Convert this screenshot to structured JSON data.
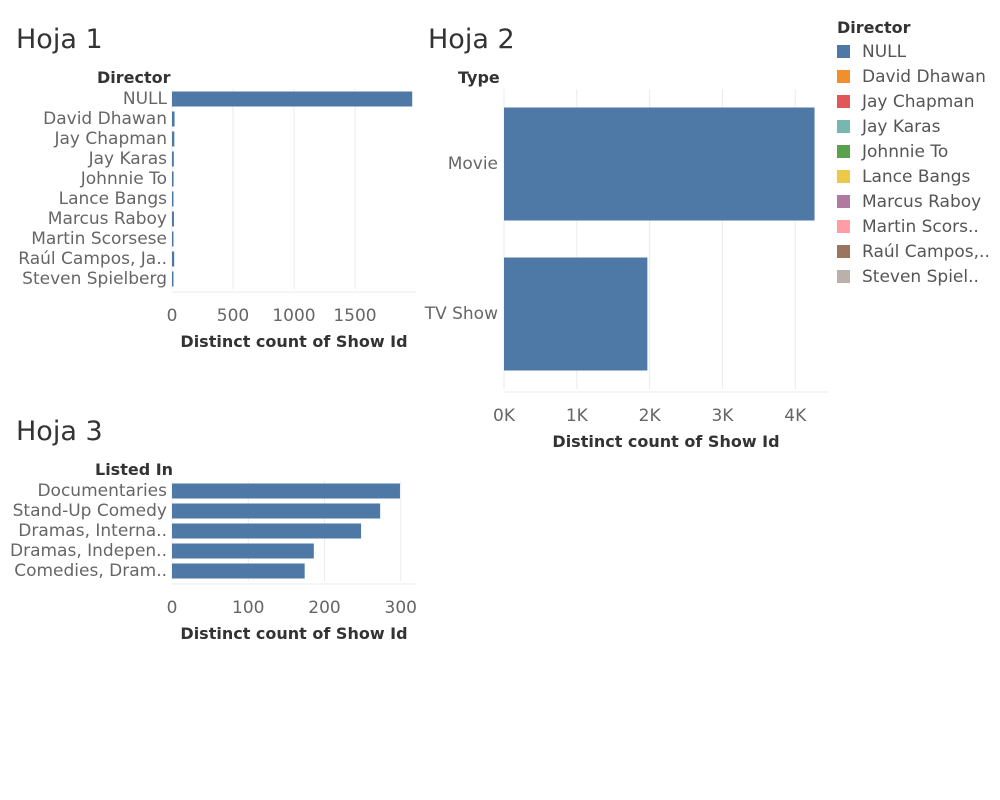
{
  "sheets": {
    "hoja1": {
      "title": "Hoja 1",
      "row_header": "Director",
      "x_title": "Distinct count of Show Id"
    },
    "hoja2": {
      "title": "Hoja 2",
      "row_header": "Type",
      "x_title": "Distinct count of Show Id"
    },
    "hoja3": {
      "title": "Hoja 3",
      "row_header": "Listed In",
      "x_title": "Distinct count of Show Id"
    }
  },
  "legend": {
    "title": "Director",
    "items": [
      {
        "label": "NULL",
        "color": "#4e79a7"
      },
      {
        "label": "David Dhawan",
        "color": "#f28e2b"
      },
      {
        "label": "Jay Chapman",
        "color": "#e15759"
      },
      {
        "label": "Jay Karas",
        "color": "#76b7b2"
      },
      {
        "label": "Johnnie To",
        "color": "#59a14f"
      },
      {
        "label": "Lance Bangs",
        "color": "#edc948"
      },
      {
        "label": "Marcus Raboy",
        "color": "#b07aa1"
      },
      {
        "label": "Martin Scors..",
        "color": "#ff9da7"
      },
      {
        "label": "Raúl Campos,..",
        "color": "#9c755f"
      },
      {
        "label": "Steven Spiel..",
        "color": "#bab0ac"
      }
    ]
  },
  "colors": {
    "bar": "#4e79a7",
    "grid": "#ebebeb",
    "tick_label": "#666666"
  },
  "chart_data": [
    {
      "type": "bar",
      "orientation": "horizontal",
      "title": "Hoja 1",
      "ylabel": "Director",
      "xlabel": "Distinct count of Show Id",
      "categories": [
        "NULL",
        "David Dhawan",
        "Jay Chapman",
        "Jay Karas",
        "Johnnie To",
        "Lance Bangs",
        "Marcus Raboy",
        "Martin Scorsese",
        "Raúl Campos, Ja..",
        "Steven Spielberg"
      ],
      "values": [
        1969,
        21,
        19,
        15,
        13,
        12,
        16,
        12,
        18,
        11
      ],
      "xlim": [
        0,
        2000
      ],
      "xticks": [
        0,
        500,
        1000,
        1500
      ],
      "xtick_labels": [
        "0",
        "500",
        "1000",
        "1500"
      ],
      "grid": true
    },
    {
      "type": "bar",
      "orientation": "horizontal",
      "title": "Hoja 2",
      "ylabel": "Type",
      "xlabel": "Distinct count of Show Id",
      "categories": [
        "Movie",
        "TV Show"
      ],
      "values": [
        4265,
        1969
      ],
      "xlim": [
        0,
        4450
      ],
      "xticks": [
        0,
        1000,
        2000,
        3000,
        4000
      ],
      "xtick_labels": [
        "0K",
        "1K",
        "2K",
        "3K",
        "4K"
      ],
      "grid": true
    },
    {
      "type": "bar",
      "orientation": "horizontal",
      "title": "Hoja 3",
      "ylabel": "Listed In",
      "xlabel": "Distinct count of Show Id",
      "categories": [
        "Documentaries",
        "Stand-Up Comedy",
        "Dramas, Interna..",
        "Dramas, Indepen..",
        "Comedies, Dram.."
      ],
      "values": [
        299,
        273,
        248,
        186,
        174
      ],
      "xlim": [
        0,
        320
      ],
      "xticks": [
        0,
        100,
        200,
        300
      ],
      "xtick_labels": [
        "0",
        "100",
        "200",
        "300"
      ],
      "grid": true
    }
  ]
}
